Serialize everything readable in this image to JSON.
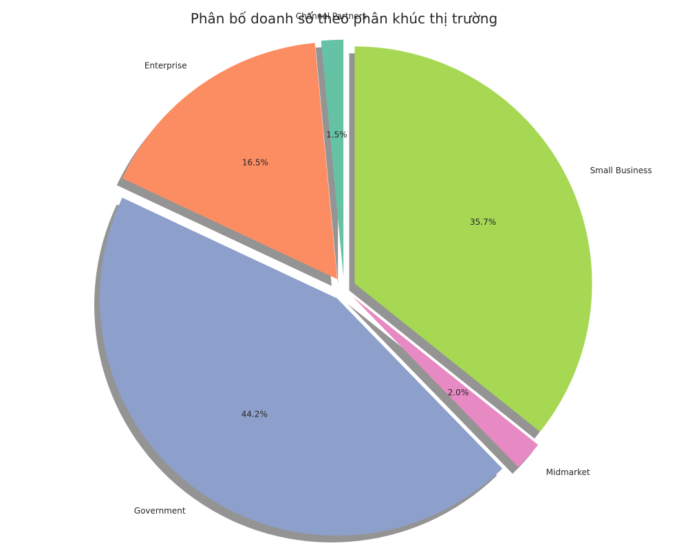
{
  "chart_data": {
    "type": "pie",
    "title": "Phân bố doanh số theo phân khúc thị trường",
    "slices": [
      {
        "label": "Channel Partners",
        "value": 1.5,
        "pct_label": "1.5%",
        "color": "#66c2a5"
      },
      {
        "label": "Enterprise",
        "value": 16.5,
        "pct_label": "16.5%",
        "color": "#fc8d62"
      },
      {
        "label": "Government",
        "value": 44.2,
        "pct_label": "44.2%",
        "color": "#8da0cb"
      },
      {
        "label": "Midmarket",
        "value": 2.0,
        "pct_label": "2.0%",
        "color": "#e78ac3"
      },
      {
        "label": "Small Business",
        "value": 35.7,
        "pct_label": "35.7%",
        "color": "#a6d854"
      }
    ],
    "start_angle_deg": 90,
    "direction": "counterclockwise",
    "exploded": true,
    "shadow": true
  }
}
